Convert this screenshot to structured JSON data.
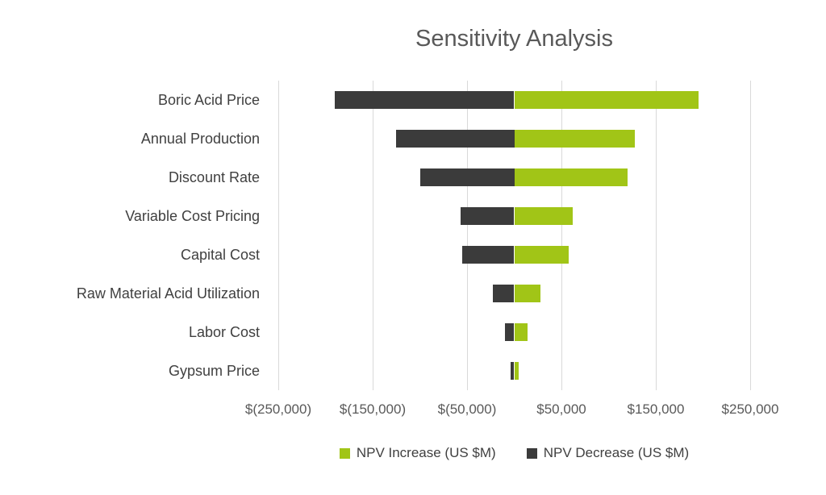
{
  "chart_data": {
    "type": "bar",
    "orientation": "horizontal",
    "title": "Sensitivity Analysis",
    "xlabel": "",
    "ylabel": "",
    "xlim": [
      -250000,
      250000
    ],
    "grid": true,
    "legend_position": "bottom",
    "categories": [
      "Boric Acid Price",
      "Annual Production",
      "Discount Rate",
      "Variable Cost Pricing",
      "Capital Cost",
      "Raw Material Acid Utilization",
      "Labor Cost",
      "Gypsum Price"
    ],
    "series": [
      {
        "name": "NPV Increase (US $M)",
        "color": "#a1c517",
        "values": [
          195000,
          128000,
          120000,
          62000,
          58000,
          28000,
          14000,
          5000
        ]
      },
      {
        "name": "NPV Decrease (US $M)",
        "color": "#3b3b3b",
        "values": [
          -190000,
          -125000,
          -100000,
          -57000,
          -55000,
          -23000,
          -10000,
          -4000
        ]
      }
    ],
    "x_tick_values": [
      -250000,
      -150000,
      -50000,
      50000,
      150000,
      250000
    ],
    "x_tick_labels": [
      "$(250,000)",
      "$(150,000)",
      "$(50,000)",
      "$50,000",
      "$150,000",
      "$250,000"
    ]
  },
  "colors": {
    "title_text": "#595959",
    "axis_text": "#595959",
    "category_text": "#404040",
    "gridline": "#d9d9d9",
    "background": "#ffffff"
  }
}
